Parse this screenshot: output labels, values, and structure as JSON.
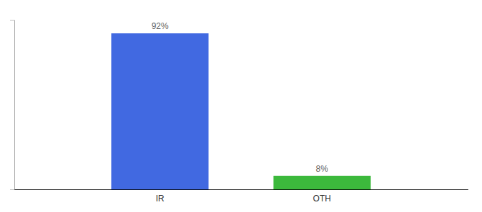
{
  "chart_data": {
    "type": "bar",
    "categories": [
      "IR",
      "OTH"
    ],
    "values": [
      92,
      8
    ],
    "value_labels": [
      "92%",
      "8%"
    ],
    "colors": [
      "#4169e1",
      "#3cb93c"
    ],
    "ylim": [
      0,
      100
    ],
    "data_labels": true,
    "tick_labels": "x"
  }
}
